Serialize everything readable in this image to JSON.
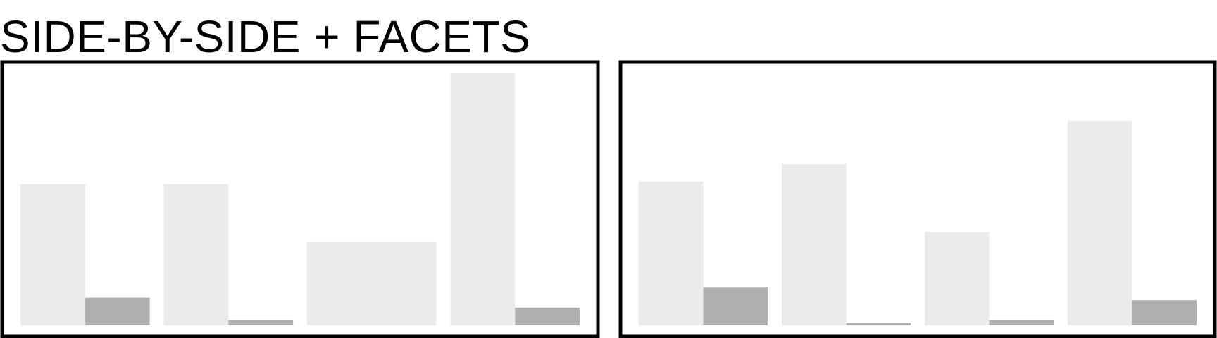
{
  "title": "SIDE-BY-SIDE + FACETS",
  "colors": {
    "background": "#ffffff",
    "frame": "#000000",
    "series_light": "#ebebeb",
    "series_dark": "#b0b0b0"
  },
  "chart_data": [
    {
      "type": "bar",
      "title": "",
      "xlabel": "",
      "ylabel": "",
      "ylim": [
        0,
        100
      ],
      "grid": false,
      "legend": "none",
      "categories": [
        "",
        "",
        "",
        ""
      ],
      "series": [
        {
          "values": [
            56,
            56,
            33,
            100
          ]
        },
        {
          "values": [
            11,
            2,
            0,
            7
          ]
        }
      ]
    },
    {
      "type": "bar",
      "title": "",
      "xlabel": "",
      "ylabel": "",
      "ylim": [
        0,
        100
      ],
      "grid": false,
      "legend": "none",
      "categories": [
        "",
        "",
        "",
        ""
      ],
      "series": [
        {
          "values": [
            57,
            64,
            37,
            81
          ]
        },
        {
          "values": [
            15,
            1,
            2,
            10
          ]
        }
      ]
    }
  ]
}
